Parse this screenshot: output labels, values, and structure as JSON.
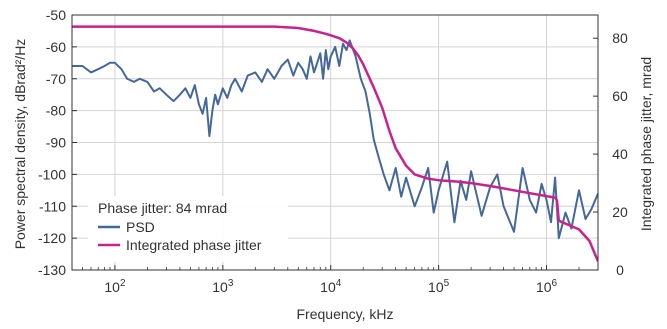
{
  "chart_data": {
    "type": "line",
    "xlabel": "Frequency, kHz",
    "ylabel": "Power spectral density, dBrad²/Hz",
    "y2label": "Integrated phase jitter, mrad",
    "xscale": "log",
    "xlim": [
      40,
      3000000
    ],
    "ylim": [
      -130,
      -50
    ],
    "y2lim": [
      0,
      88
    ],
    "x_ticks": [
      {
        "value": 100,
        "base": "10",
        "exp": "2"
      },
      {
        "value": 1000,
        "base": "10",
        "exp": "3"
      },
      {
        "value": 10000,
        "base": "10",
        "exp": "4"
      },
      {
        "value": 100000,
        "base": "10",
        "exp": "5"
      },
      {
        "value": 1000000,
        "base": "10",
        "exp": "6"
      }
    ],
    "y_ticks": [
      -50,
      -60,
      -70,
      -80,
      -90,
      -100,
      -110,
      -120,
      -130
    ],
    "y2_ticks": [
      80,
      60,
      40,
      20,
      0
    ],
    "grid": true,
    "legend_position": "bottom-left",
    "legend_title": "Phase jitter: 84 mrad",
    "colors": {
      "psd": "#44689a",
      "jitter": "#c8228f",
      "grid": "#d4d4d4",
      "axis": "#333333"
    },
    "series": [
      {
        "name": "PSD",
        "axis": "left",
        "x": [
          40,
          50,
          60,
          70,
          80,
          90,
          100,
          115,
          130,
          150,
          170,
          200,
          230,
          260,
          300,
          350,
          400,
          450,
          500,
          550,
          600,
          650,
          700,
          750,
          800,
          850,
          900,
          1000,
          1100,
          1200,
          1300,
          1500,
          1700,
          2000,
          2300,
          2600,
          3000,
          3500,
          4000,
          4500,
          5000,
          5500,
          6000,
          6500,
          7000,
          7500,
          8000,
          8500,
          9000,
          9500,
          10000,
          11000,
          12000,
          13000,
          14000,
          15000,
          17000,
          19000,
          21000,
          23000,
          25000,
          28000,
          31000,
          35000,
          40000,
          45000,
          50000,
          60000,
          70000,
          80000,
          90000,
          100000,
          120000,
          140000,
          160000,
          180000,
          200000,
          250000,
          300000,
          350000,
          400000,
          500000,
          600000,
          700000,
          800000,
          900000,
          1000000,
          1100000,
          1200000,
          1300000,
          1500000,
          1700000,
          2000000,
          2300000,
          2600000,
          3000000
        ],
        "y": [
          -66,
          -66,
          -68,
          -67,
          -66,
          -65,
          -65,
          -67,
          -70,
          -71,
          -70,
          -71,
          -74,
          -73,
          -75,
          -77,
          -75,
          -73,
          -76,
          -72,
          -78,
          -81,
          -76,
          -88,
          -80,
          -75,
          -78,
          -73,
          -76,
          -72,
          -70,
          -74,
          -69,
          -68,
          -71,
          -67,
          -70,
          -66,
          -64,
          -69,
          -65,
          -67,
          -70,
          -63,
          -68,
          -65,
          -62,
          -70,
          -61,
          -67,
          -63,
          -60,
          -66,
          -59,
          -61,
          -58,
          -63,
          -70,
          -74,
          -81,
          -89,
          -95,
          -100,
          -105,
          -98,
          -107,
          -101,
          -110,
          -104,
          -98,
          -112,
          -105,
          -96,
          -115,
          -102,
          -108,
          -99,
          -113,
          -104,
          -100,
          -110,
          -118,
          -98,
          -108,
          -112,
          -103,
          -108,
          -115,
          -101,
          -120,
          -112,
          -117,
          -105,
          -114,
          -111,
          -106
        ]
      },
      {
        "name": "Integrated phase jitter",
        "axis": "right",
        "x": [
          40,
          1000,
          3000,
          5000,
          7000,
          9000,
          10000,
          12000,
          14000,
          16000,
          18000,
          20000,
          25000,
          30000,
          35000,
          40000,
          50000,
          60000,
          80000,
          100000,
          150000,
          200000,
          300000,
          500000,
          700000,
          1000000,
          1200000,
          1250000,
          1300000,
          1500000,
          2000000,
          2500000,
          3000000
        ],
        "y": [
          84,
          84,
          84,
          83.5,
          82.5,
          81.5,
          81,
          80,
          78.5,
          76.5,
          74,
          71,
          63,
          56,
          48,
          42,
          36,
          33,
          31.5,
          31,
          30.5,
          30,
          29,
          27.5,
          26.5,
          25.5,
          25,
          24,
          17,
          16,
          14,
          10,
          3
        ]
      }
    ]
  }
}
